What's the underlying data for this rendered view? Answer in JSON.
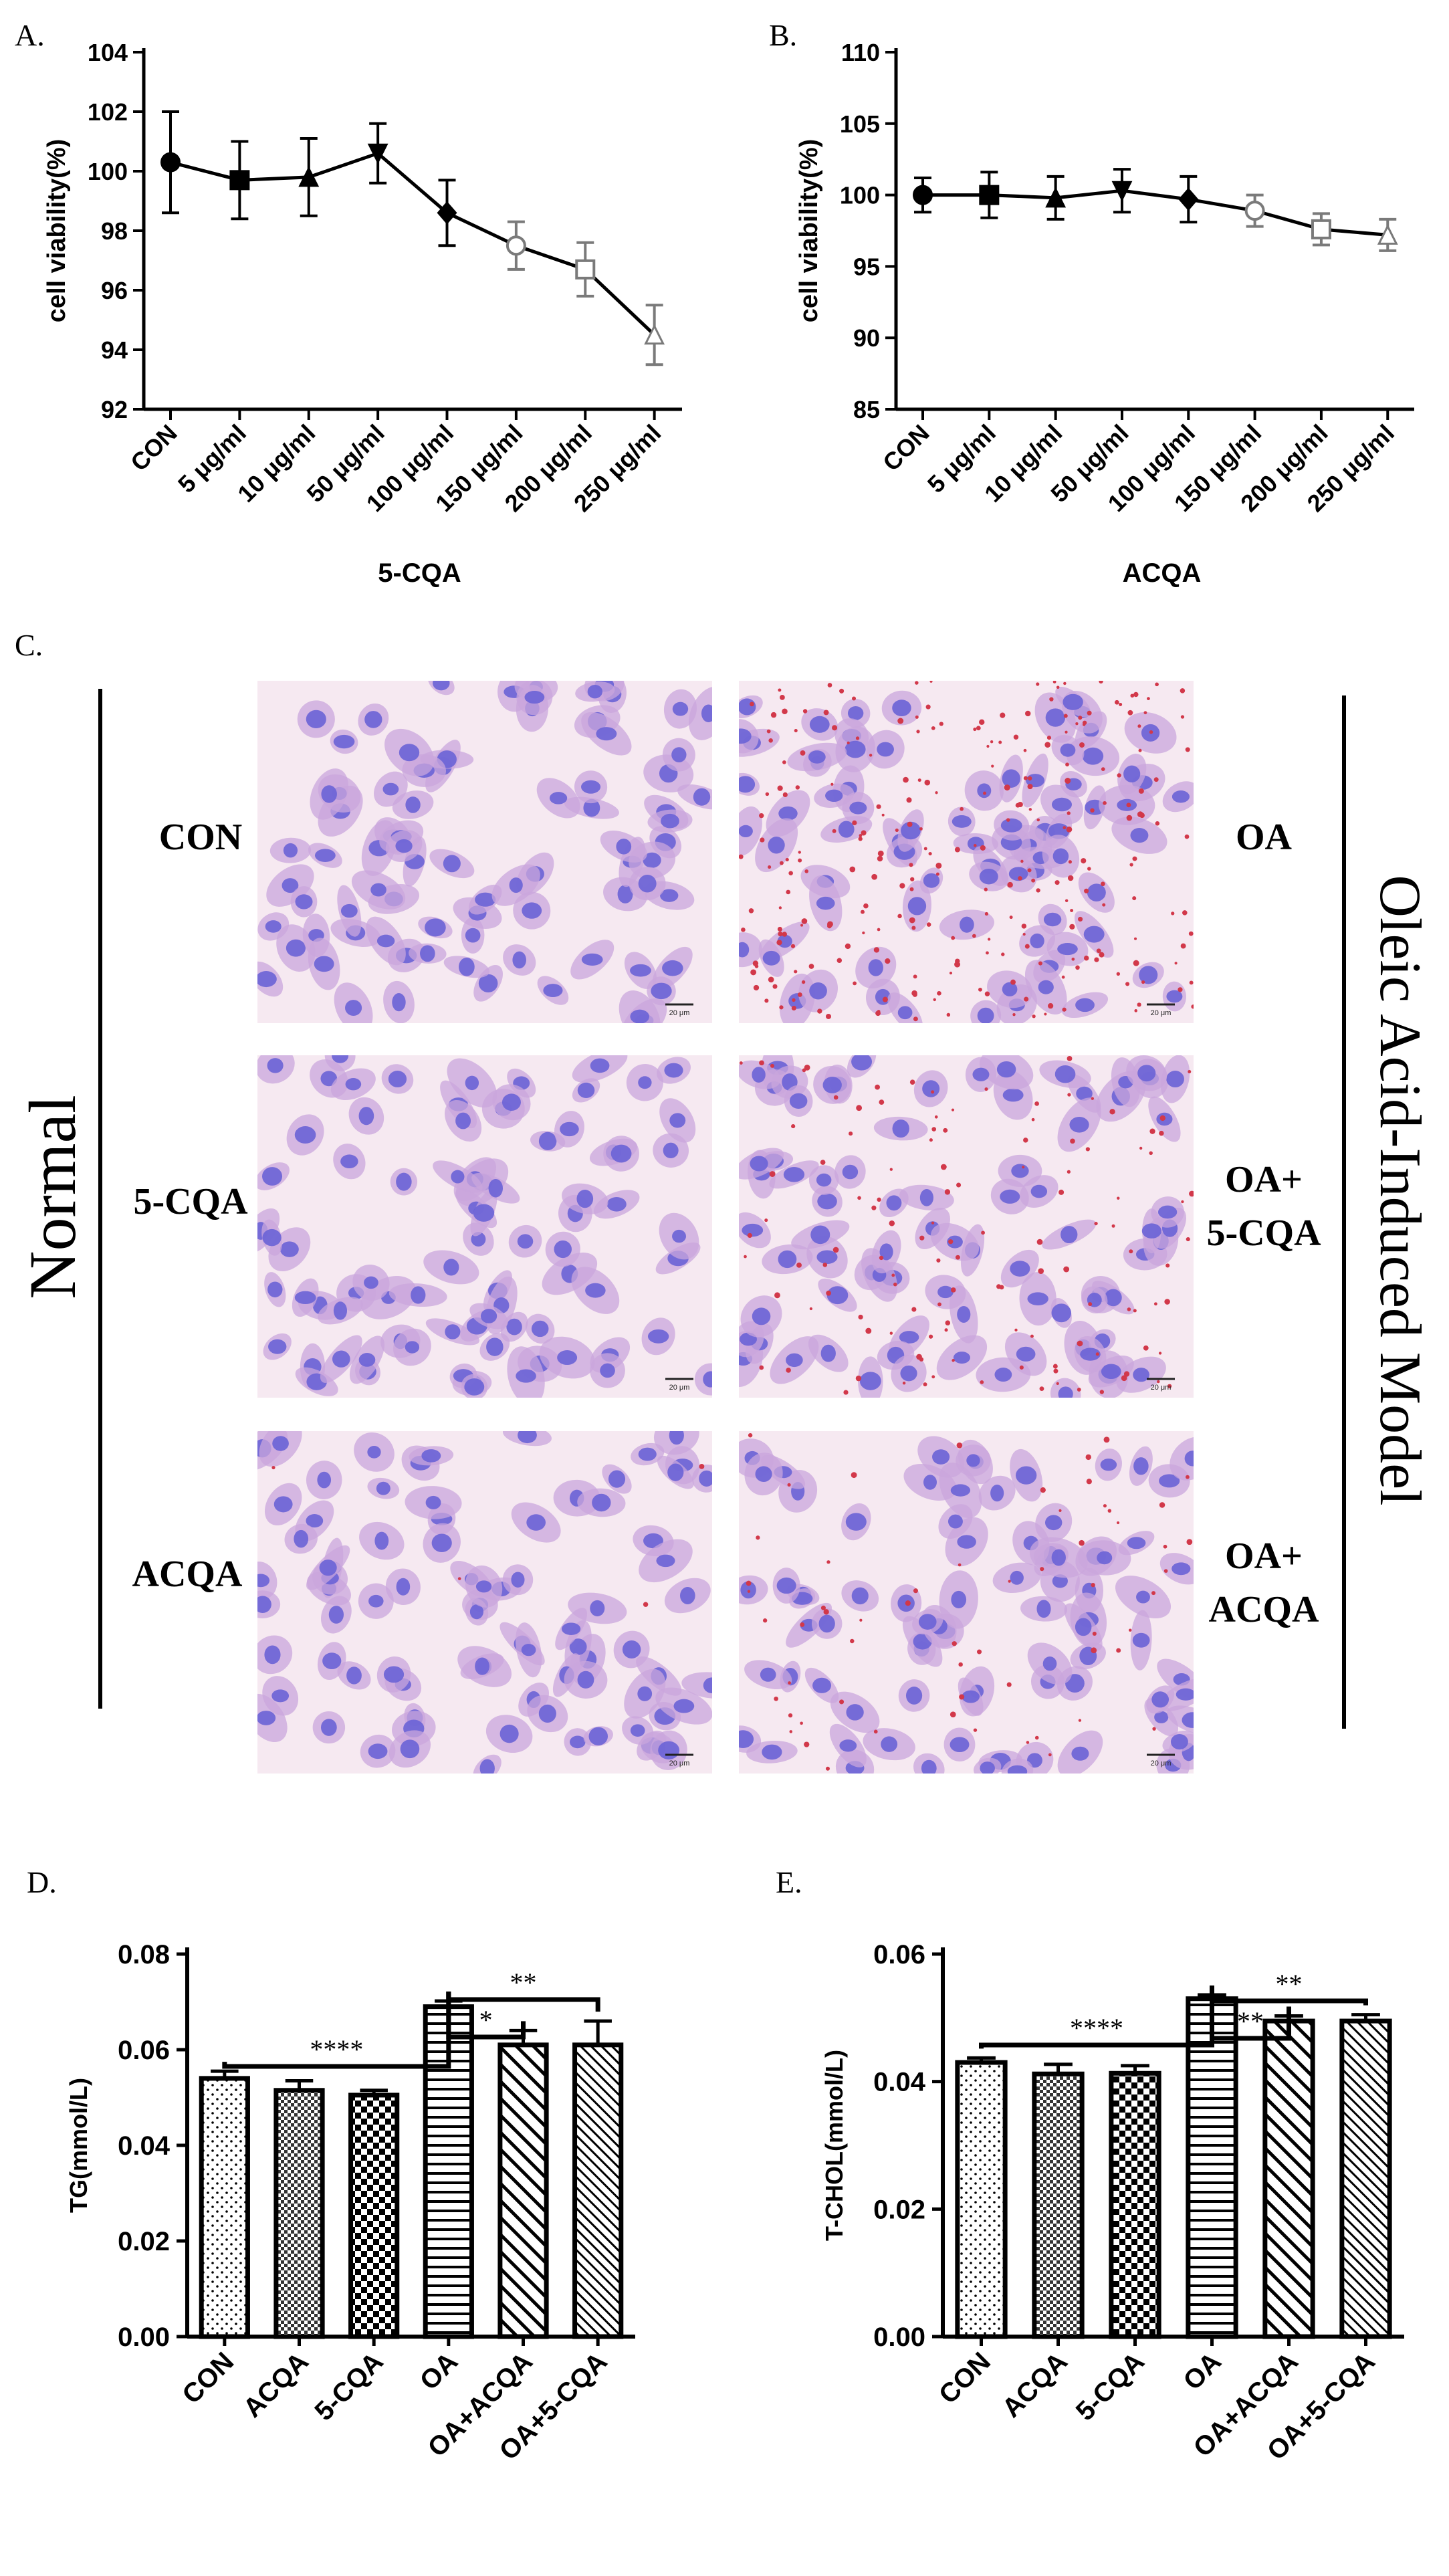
{
  "panels": {
    "a": "A.",
    "b": "B.",
    "c": "C.",
    "d": "D.",
    "e": "E."
  },
  "chart_data": [
    {
      "id": "A",
      "type": "line",
      "title": "",
      "xlabel": "5-CQA",
      "ylabel": "cell viability(%)",
      "categories": [
        "CON",
        "5 μg/ml",
        "10 μg/ml",
        "50 μg/ml",
        "100 μg/ml",
        "150 μg/ml",
        "200 μg/ml",
        "250 μg/ml"
      ],
      "values": [
        100.3,
        99.7,
        99.8,
        100.6,
        98.6,
        97.5,
        96.7,
        94.5
      ],
      "errors": [
        1.7,
        1.3,
        1.3,
        1.0,
        1.1,
        0.8,
        0.9,
        1.0
      ],
      "markers": [
        "circle",
        "square",
        "triangle",
        "triangle-down",
        "diamond",
        "circle-open",
        "square-open",
        "triangle-open"
      ],
      "ylim": [
        92,
        104
      ],
      "yticks": [
        "92",
        "94",
        "96",
        "98",
        "100",
        "102",
        "104"
      ]
    },
    {
      "id": "B",
      "type": "line",
      "title": "",
      "xlabel": "ACQA",
      "ylabel": "cell viability(%)",
      "categories": [
        "CON",
        "5 μg/ml",
        "10 μg/ml",
        "50 μg/ml",
        "100 μg/ml",
        "150 μg/ml",
        "200 μg/ml",
        "250 μg/ml"
      ],
      "values": [
        100.0,
        100.0,
        99.8,
        100.3,
        99.7,
        98.9,
        97.6,
        97.2
      ],
      "errors": [
        1.2,
        1.6,
        1.5,
        1.5,
        1.6,
        1.1,
        1.1,
        1.1
      ],
      "markers": [
        "circle",
        "square",
        "triangle",
        "triangle-down",
        "diamond",
        "circle-open",
        "square-open",
        "triangle-open"
      ],
      "ylim": [
        85,
        110
      ],
      "yticks": [
        "85",
        "90",
        "95",
        "100",
        "105",
        "110"
      ]
    },
    {
      "id": "D",
      "type": "bar",
      "title": "",
      "xlabel": "",
      "ylabel": "TG(mmol/L)",
      "categories": [
        "CON",
        "ACQA",
        "5-CQA",
        "OA",
        "OA+ACQA",
        "OA+5-CQA"
      ],
      "values": [
        0.054,
        0.0515,
        0.0505,
        0.069,
        0.061,
        0.061
      ],
      "errors": [
        0.0015,
        0.002,
        0.001,
        0.0012,
        0.003,
        0.005
      ],
      "patterns": [
        "dots",
        "checker-fine",
        "checker",
        "horizontal",
        "diagonal",
        "diagonal-fine"
      ],
      "ylim": [
        0,
        0.08
      ],
      "yticks": [
        "0.00",
        "0.02",
        "0.04",
        "0.06",
        "0.08"
      ],
      "significance": [
        {
          "from": 0,
          "to": 3,
          "label": "****"
        },
        {
          "from": 3,
          "to": 5,
          "label": "**"
        },
        {
          "from": 3,
          "to": 4,
          "label": "*"
        }
      ]
    },
    {
      "id": "E",
      "type": "bar",
      "title": "",
      "xlabel": "",
      "ylabel": "T-CHOL(mmol/L)",
      "categories": [
        "CON",
        "ACQA",
        "5-CQA",
        "OA",
        "OA+ACQA",
        "OA+5-CQA"
      ],
      "values": [
        0.043,
        0.0412,
        0.0413,
        0.053,
        0.0495,
        0.0495
      ],
      "errors": [
        0.0007,
        0.0015,
        0.0012,
        0.0006,
        0.0008,
        0.001
      ],
      "patterns": [
        "dots",
        "checker-fine",
        "checker",
        "horizontal",
        "diagonal",
        "diagonal-fine"
      ],
      "ylim": [
        0,
        0.06
      ],
      "yticks": [
        "0.00",
        "0.02",
        "0.04",
        "0.06"
      ],
      "significance": [
        {
          "from": 0,
          "to": 3,
          "label": "****"
        },
        {
          "from": 3,
          "to": 5,
          "label": "**"
        },
        {
          "from": 3,
          "to": 4,
          "label": "**"
        }
      ]
    }
  ],
  "micrographs": {
    "left_group_label": "Normal",
    "right_group_label": "Oleic Acid-Induced Model",
    "rows": [
      {
        "left_label": "CON",
        "right_label": [
          "OA"
        ]
      },
      {
        "left_label": "5-CQA",
        "right_label": [
          "OA+",
          "5-CQA"
        ]
      },
      {
        "left_label": "ACQA",
        "right_label": [
          "OA+",
          "ACQA"
        ]
      }
    ],
    "scale_bar": "20 μm",
    "colors": {
      "cell": "#6a63d6",
      "cytoplasm": "#c9a6dc",
      "background": "#f6e9f1",
      "lipid": "#d2384a"
    }
  },
  "colors": {
    "line": "#000000",
    "marker_open": "#9a9a9a",
    "bracket_gray": "#666666"
  }
}
